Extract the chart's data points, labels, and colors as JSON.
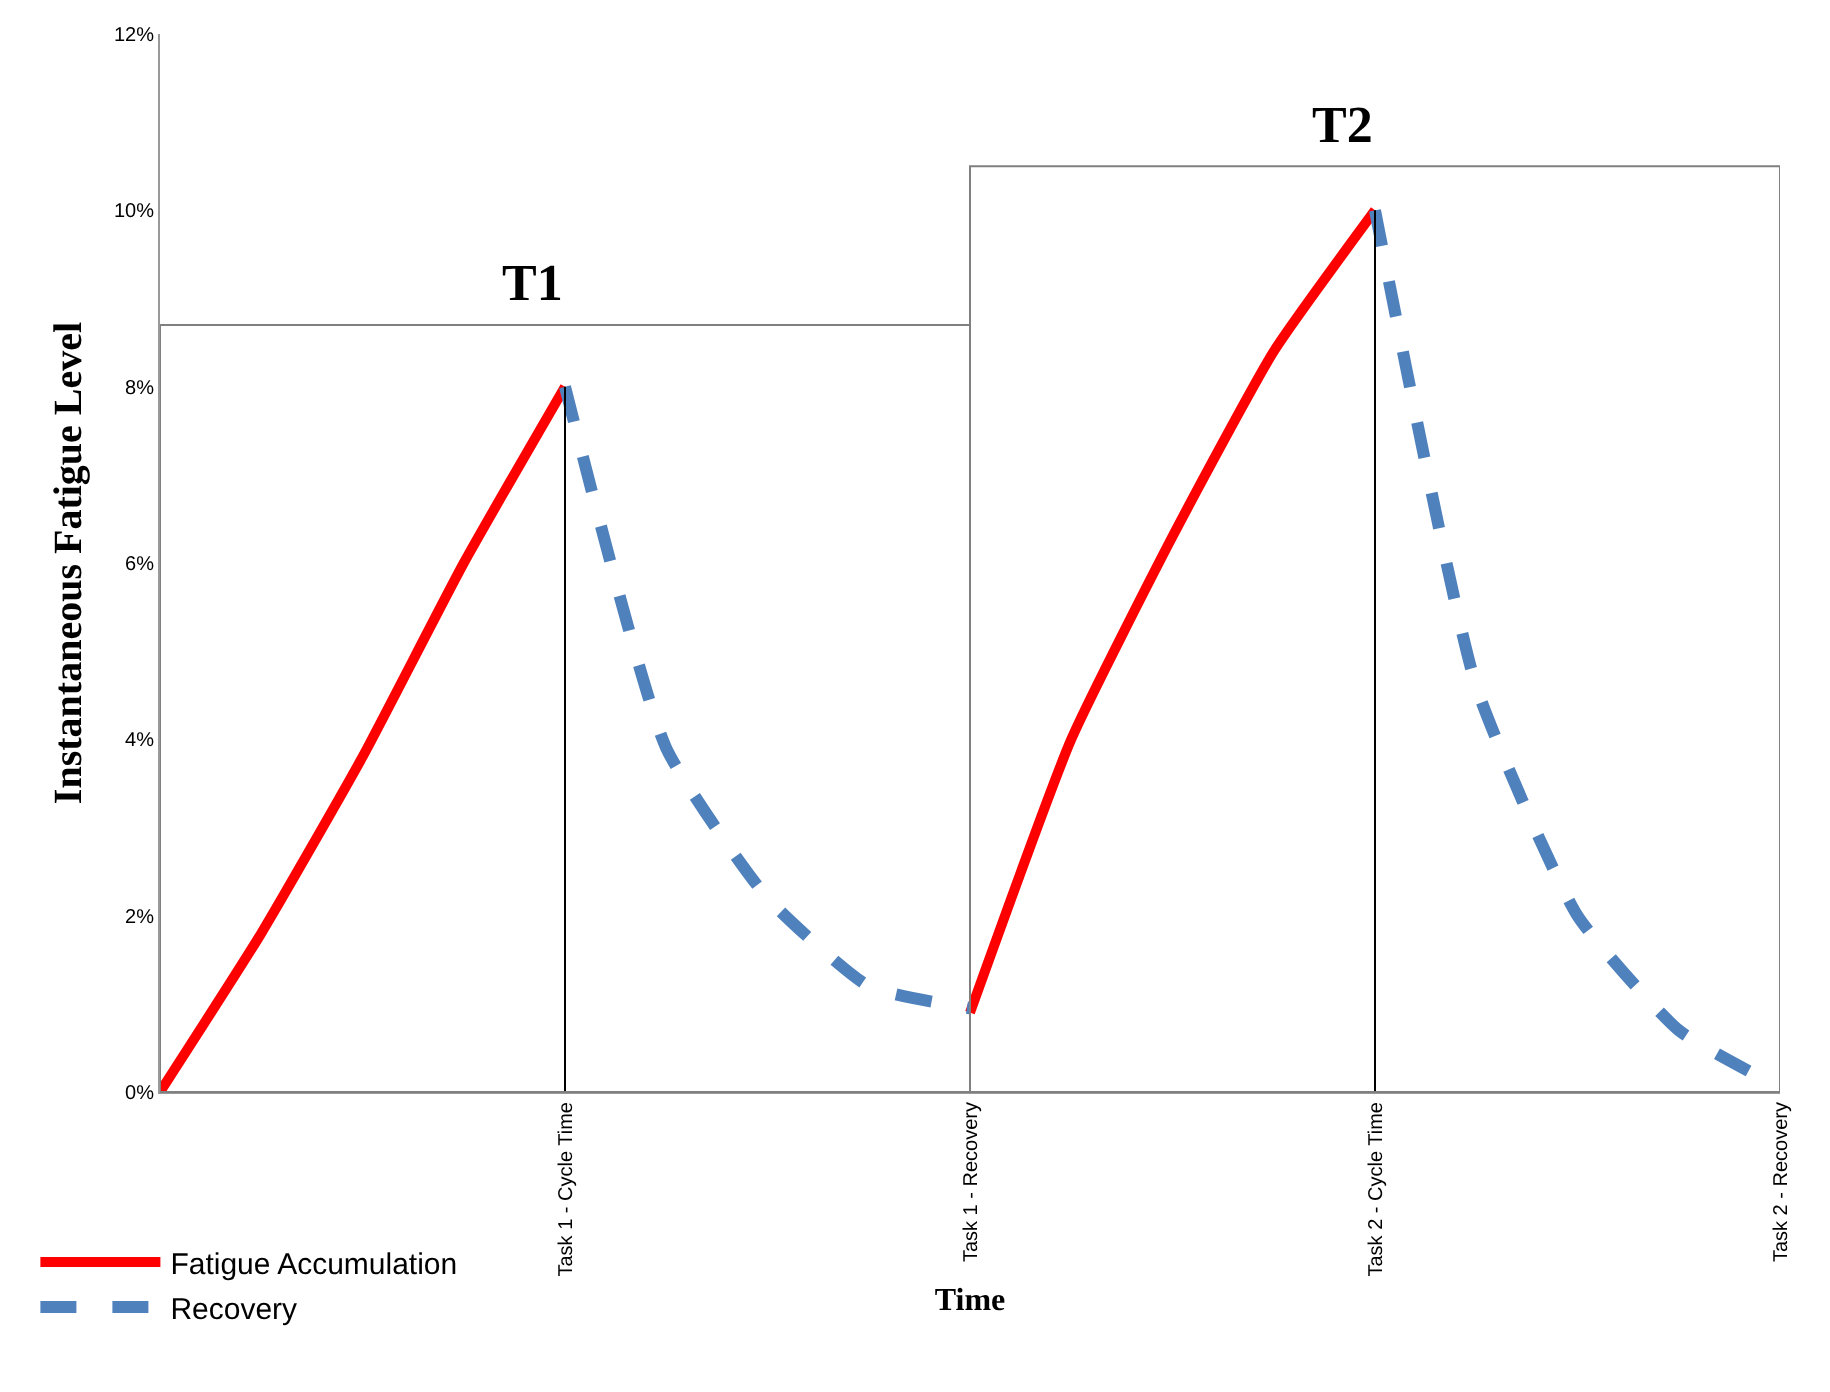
{
  "chart_data": {
    "type": "line",
    "xlabel": "Time",
    "ylabel": "Instantaneous Fatigue Level",
    "categories": [
      null,
      null,
      null,
      null,
      "Task 1 - Cycle Time",
      null,
      null,
      null,
      "Task 1 - Recovery",
      null,
      null,
      null,
      "Task 2 - Cycle Time",
      null,
      null,
      null,
      "Task 2 - Recovery"
    ],
    "ylim": [
      0,
      12
    ],
    "yticks": [
      {
        "value": 0,
        "label": "0%"
      },
      {
        "value": 2,
        "label": "2%"
      },
      {
        "value": 4,
        "label": "4%"
      },
      {
        "value": 6,
        "label": "6%"
      },
      {
        "value": 8,
        "label": "8%"
      },
      {
        "value": 10,
        "label": "10%"
      },
      {
        "value": 12,
        "label": "12%"
      }
    ],
    "series": [
      {
        "name": "Fatigue Accumulation",
        "color": "#ff0000",
        "line_style": "solid",
        "values": [
          0,
          1.8,
          3.8,
          6.0,
          8.0,
          null,
          null,
          null,
          0.9,
          4.0,
          6.3,
          8.4,
          10.0,
          null,
          null,
          null,
          null
        ]
      },
      {
        "name": "Recovery",
        "color": "#4f81bd",
        "line_style": "dashed",
        "values": [
          null,
          null,
          null,
          null,
          8.0,
          3.9,
          2.2,
          1.2,
          0.95,
          null,
          null,
          null,
          10.0,
          4.6,
          2.0,
          0.7,
          0.05
        ]
      }
    ],
    "ref_lines": [
      {
        "axis": "x",
        "value": "Task 1 - Cycle Time",
        "color": "#000000"
      },
      {
        "axis": "x",
        "value": "Task 2 - Cycle Time",
        "color": "#000000"
      }
    ],
    "annotations": [
      "T1",
      "T2"
    ],
    "legend": "bottom left",
    "marker": "none"
  }
}
